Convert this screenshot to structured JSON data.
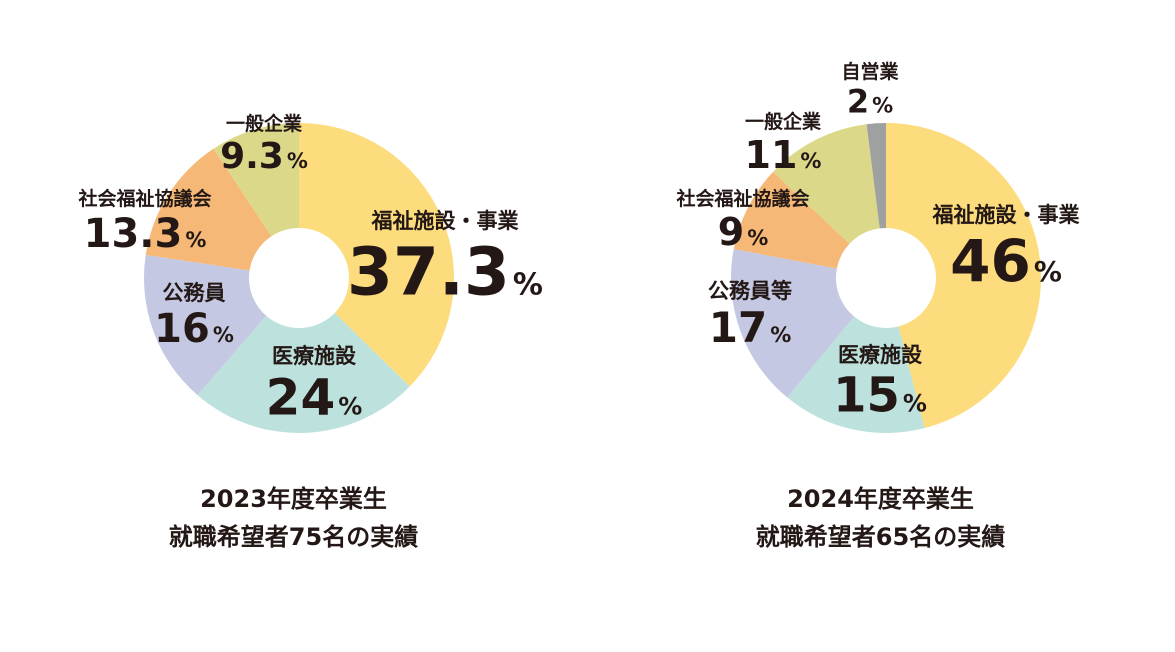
{
  "colors": {
    "fukushi": "#fcdc7c",
    "iryo": "#bde2de",
    "komuin": "#c5c8e2",
    "shakyo": "#f5b877",
    "ippan": "#dbd989",
    "jiei": "#9fa0a0",
    "text": "#231815"
  },
  "chart_data": [
    {
      "type": "pie",
      "variant": "donut",
      "start_angle": "12 o'clock, clockwise",
      "slices": [
        {
          "label": "福祉施設・事業",
          "value": 37.3,
          "display": "37.3",
          "color_key": "fukushi"
        },
        {
          "label": "医療施設",
          "value": 24,
          "display": "24",
          "color_key": "iryo"
        },
        {
          "label": "公務員",
          "value": 16,
          "display": "16",
          "color_key": "komuin"
        },
        {
          "label": "社会福祉協議会",
          "value": 13.3,
          "display": "13.3",
          "color_key": "shakyo"
        },
        {
          "label": "一般企業",
          "value": 9.3,
          "display": "9.3",
          "color_key": "ippan"
        }
      ],
      "unit": "%",
      "caption_line1": "2023年度卒業生",
      "caption_line2": "就職希望者75名の実績"
    },
    {
      "type": "pie",
      "variant": "donut",
      "start_angle": "12 o'clock, clockwise",
      "slices": [
        {
          "label": "福祉施設・事業",
          "value": 46,
          "display": "46",
          "color_key": "fukushi"
        },
        {
          "label": "医療施設",
          "value": 15,
          "display": "15",
          "color_key": "iryo"
        },
        {
          "label": "公務員等",
          "value": 17,
          "display": "17",
          "color_key": "komuin"
        },
        {
          "label": "社会福祉協議会",
          "value": 9,
          "display": "9",
          "color_key": "shakyo"
        },
        {
          "label": "一般企業",
          "value": 11,
          "display": "11",
          "color_key": "ippan"
        },
        {
          "label": "自営業",
          "value": 2,
          "display": "2",
          "color_key": "jiei"
        }
      ],
      "unit": "%",
      "caption_line1": "2024年度卒業生",
      "caption_line2": "就職希望者65名の実績"
    }
  ]
}
